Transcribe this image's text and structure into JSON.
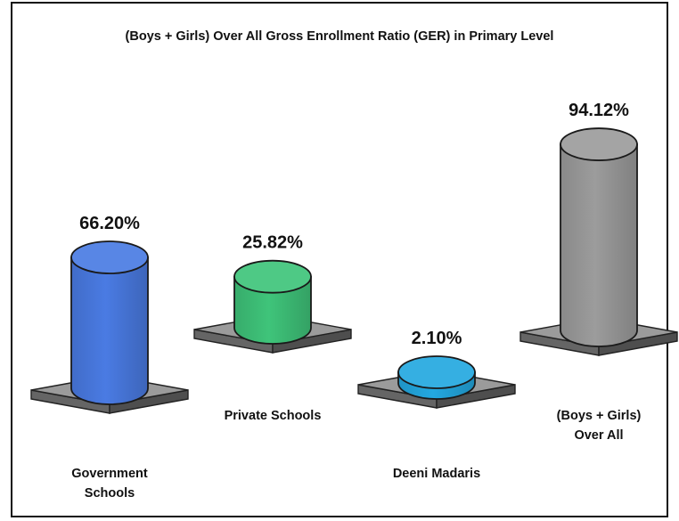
{
  "chart_data": {
    "type": "bar",
    "title": "(Boys + Girls) Over All Gross Enrollment Ratio (GER) in Primary Level",
    "categories": [
      [
        "Government",
        "Schools"
      ],
      [
        "Private Schools"
      ],
      [
        "Deeni Madaris"
      ],
      [
        "(Boys + Girls)",
        "Over All"
      ]
    ],
    "values": [
      66.2,
      25.82,
      2.1,
      94.12
    ],
    "value_labels": [
      "66.20%",
      "25.82%",
      "2.10%",
      "94.12%"
    ],
    "unit": "%",
    "colors": [
      "#4a7be3",
      "#3fc47a",
      "#23a8e0",
      "#9c9c9c"
    ],
    "base_color": "#9b9b9b",
    "grid": false,
    "legend": "none"
  }
}
